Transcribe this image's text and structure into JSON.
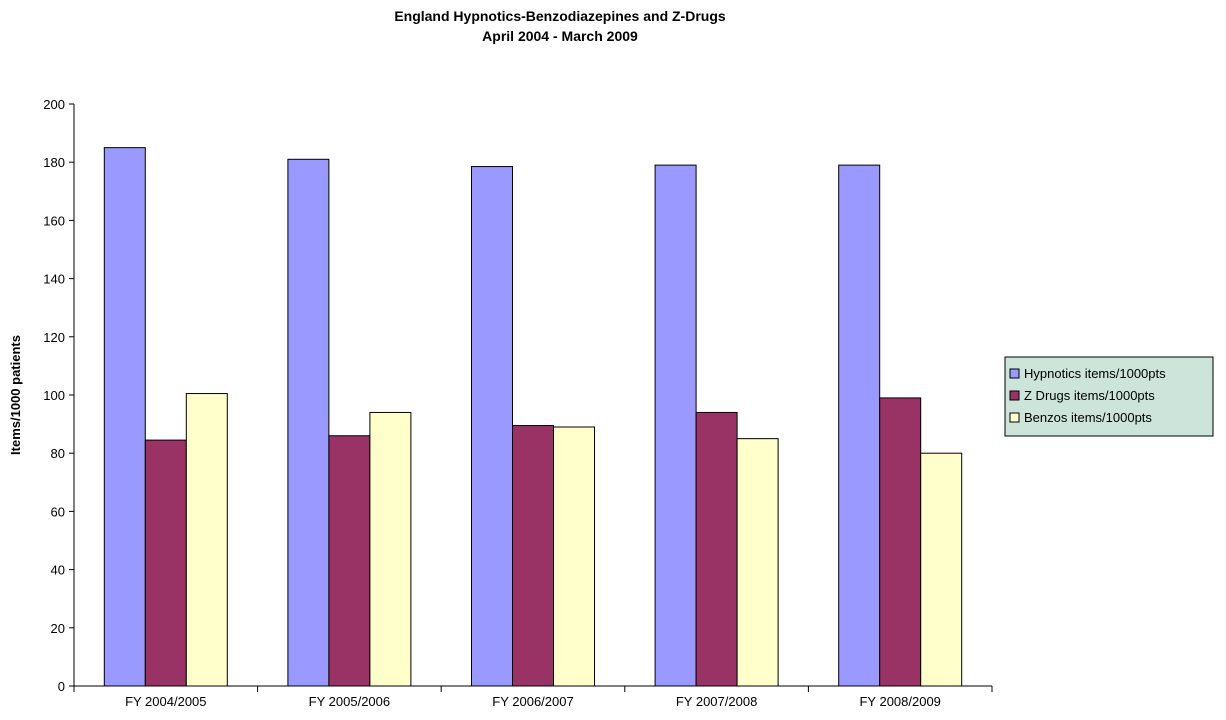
{
  "chart_data": {
    "type": "bar",
    "title": "England Hypnotics-Benzodiazepines  and Z-Drugs",
    "subtitle": "April 2004 - March 2009",
    "xlabel": "",
    "ylabel": "Items/1000 patients",
    "ylim": [
      0,
      200
    ],
    "yticks": [
      0,
      20,
      40,
      60,
      80,
      100,
      120,
      140,
      160,
      180,
      200
    ],
    "categories": [
      "FY 2004/2005",
      "FY 2005/2006",
      "FY 2006/2007",
      "FY 2007/2008",
      "FY 2008/2009"
    ],
    "series": [
      {
        "name": "Hypnotics items/1000pts",
        "color": "#9999ff",
        "values": [
          185,
          181,
          178.5,
          179,
          179
        ]
      },
      {
        "name": "Z Drugs items/1000pts",
        "color": "#993366",
        "values": [
          84.5,
          86,
          89.5,
          94,
          99
        ]
      },
      {
        "name": "Benzos items/1000pts",
        "color": "#ffffcc",
        "values": [
          100.5,
          94,
          89,
          85,
          80
        ]
      }
    ],
    "grid": false,
    "legend_position": "right",
    "legend_background": "#cce4da"
  }
}
